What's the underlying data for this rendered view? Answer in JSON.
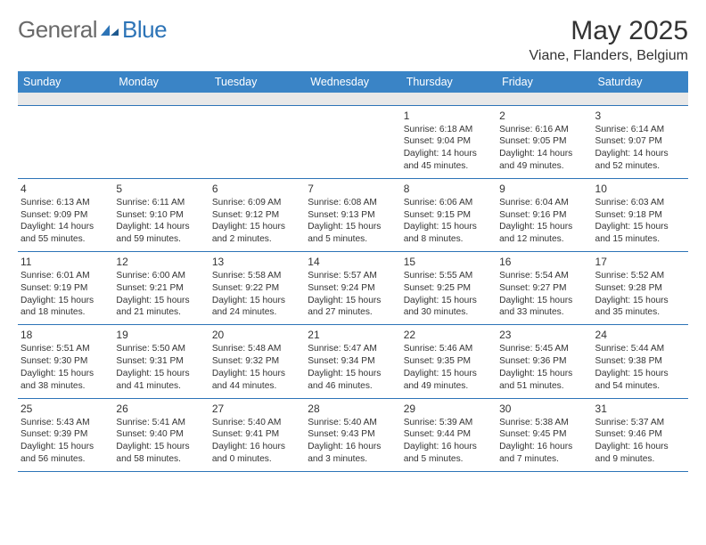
{
  "logo": {
    "general": "General",
    "blue": "Blue"
  },
  "title": "May 2025",
  "location": "Viane, Flanders, Belgium",
  "colors": {
    "header_bg": "#3a84c6",
    "header_text": "#ffffff",
    "border": "#2d74b7",
    "text": "#333333",
    "muted_row": "#e8e8e8",
    "logo_gray": "#6a6a6a",
    "logo_blue": "#2d74b7",
    "page_bg": "#ffffff"
  },
  "typography": {
    "title_fontsize": 30,
    "location_fontsize": 16,
    "dayheader_fontsize": 12.5,
    "daynum_fontsize": 12,
    "cell_fontsize": 10.2
  },
  "day_headers": [
    "Sunday",
    "Monday",
    "Tuesday",
    "Wednesday",
    "Thursday",
    "Friday",
    "Saturday"
  ],
  "calendar": {
    "type": "table",
    "columns": 7,
    "lead_blanks": 4,
    "days": [
      {
        "n": "1",
        "sunrise": "6:18 AM",
        "sunset": "9:04 PM",
        "daylight": "14 hours and 45 minutes."
      },
      {
        "n": "2",
        "sunrise": "6:16 AM",
        "sunset": "9:05 PM",
        "daylight": "14 hours and 49 minutes."
      },
      {
        "n": "3",
        "sunrise": "6:14 AM",
        "sunset": "9:07 PM",
        "daylight": "14 hours and 52 minutes."
      },
      {
        "n": "4",
        "sunrise": "6:13 AM",
        "sunset": "9:09 PM",
        "daylight": "14 hours and 55 minutes."
      },
      {
        "n": "5",
        "sunrise": "6:11 AM",
        "sunset": "9:10 PM",
        "daylight": "14 hours and 59 minutes."
      },
      {
        "n": "6",
        "sunrise": "6:09 AM",
        "sunset": "9:12 PM",
        "daylight": "15 hours and 2 minutes."
      },
      {
        "n": "7",
        "sunrise": "6:08 AM",
        "sunset": "9:13 PM",
        "daylight": "15 hours and 5 minutes."
      },
      {
        "n": "8",
        "sunrise": "6:06 AM",
        "sunset": "9:15 PM",
        "daylight": "15 hours and 8 minutes."
      },
      {
        "n": "9",
        "sunrise": "6:04 AM",
        "sunset": "9:16 PM",
        "daylight": "15 hours and 12 minutes."
      },
      {
        "n": "10",
        "sunrise": "6:03 AM",
        "sunset": "9:18 PM",
        "daylight": "15 hours and 15 minutes."
      },
      {
        "n": "11",
        "sunrise": "6:01 AM",
        "sunset": "9:19 PM",
        "daylight": "15 hours and 18 minutes."
      },
      {
        "n": "12",
        "sunrise": "6:00 AM",
        "sunset": "9:21 PM",
        "daylight": "15 hours and 21 minutes."
      },
      {
        "n": "13",
        "sunrise": "5:58 AM",
        "sunset": "9:22 PM",
        "daylight": "15 hours and 24 minutes."
      },
      {
        "n": "14",
        "sunrise": "5:57 AM",
        "sunset": "9:24 PM",
        "daylight": "15 hours and 27 minutes."
      },
      {
        "n": "15",
        "sunrise": "5:55 AM",
        "sunset": "9:25 PM",
        "daylight": "15 hours and 30 minutes."
      },
      {
        "n": "16",
        "sunrise": "5:54 AM",
        "sunset": "9:27 PM",
        "daylight": "15 hours and 33 minutes."
      },
      {
        "n": "17",
        "sunrise": "5:52 AM",
        "sunset": "9:28 PM",
        "daylight": "15 hours and 35 minutes."
      },
      {
        "n": "18",
        "sunrise": "5:51 AM",
        "sunset": "9:30 PM",
        "daylight": "15 hours and 38 minutes."
      },
      {
        "n": "19",
        "sunrise": "5:50 AM",
        "sunset": "9:31 PM",
        "daylight": "15 hours and 41 minutes."
      },
      {
        "n": "20",
        "sunrise": "5:48 AM",
        "sunset": "9:32 PM",
        "daylight": "15 hours and 44 minutes."
      },
      {
        "n": "21",
        "sunrise": "5:47 AM",
        "sunset": "9:34 PM",
        "daylight": "15 hours and 46 minutes."
      },
      {
        "n": "22",
        "sunrise": "5:46 AM",
        "sunset": "9:35 PM",
        "daylight": "15 hours and 49 minutes."
      },
      {
        "n": "23",
        "sunrise": "5:45 AM",
        "sunset": "9:36 PM",
        "daylight": "15 hours and 51 minutes."
      },
      {
        "n": "24",
        "sunrise": "5:44 AM",
        "sunset": "9:38 PM",
        "daylight": "15 hours and 54 minutes."
      },
      {
        "n": "25",
        "sunrise": "5:43 AM",
        "sunset": "9:39 PM",
        "daylight": "15 hours and 56 minutes."
      },
      {
        "n": "26",
        "sunrise": "5:41 AM",
        "sunset": "9:40 PM",
        "daylight": "15 hours and 58 minutes."
      },
      {
        "n": "27",
        "sunrise": "5:40 AM",
        "sunset": "9:41 PM",
        "daylight": "16 hours and 0 minutes."
      },
      {
        "n": "28",
        "sunrise": "5:40 AM",
        "sunset": "9:43 PM",
        "daylight": "16 hours and 3 minutes."
      },
      {
        "n": "29",
        "sunrise": "5:39 AM",
        "sunset": "9:44 PM",
        "daylight": "16 hours and 5 minutes."
      },
      {
        "n": "30",
        "sunrise": "5:38 AM",
        "sunset": "9:45 PM",
        "daylight": "16 hours and 7 minutes."
      },
      {
        "n": "31",
        "sunrise": "5:37 AM",
        "sunset": "9:46 PM",
        "daylight": "16 hours and 9 minutes."
      }
    ],
    "labels": {
      "sunrise": "Sunrise: ",
      "sunset": "Sunset: ",
      "daylight": "Daylight: "
    }
  }
}
